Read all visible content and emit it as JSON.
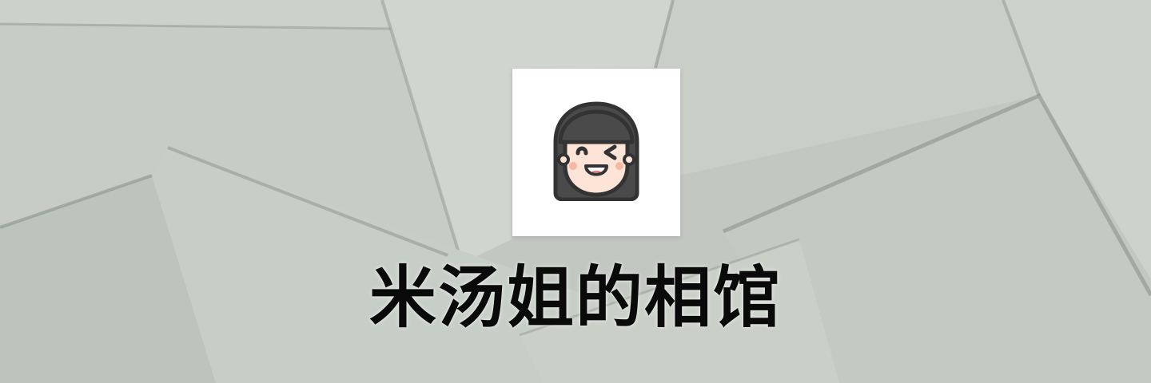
{
  "banner": {
    "title": "米汤姐的相馆",
    "background_color": "#c5cbc4",
    "card_color": "#ffffff",
    "avatar_icon": "winking-girl-face-icon",
    "avatar_hair_color": "#4a4a4a",
    "avatar_skin_color": "#fde4d6"
  }
}
